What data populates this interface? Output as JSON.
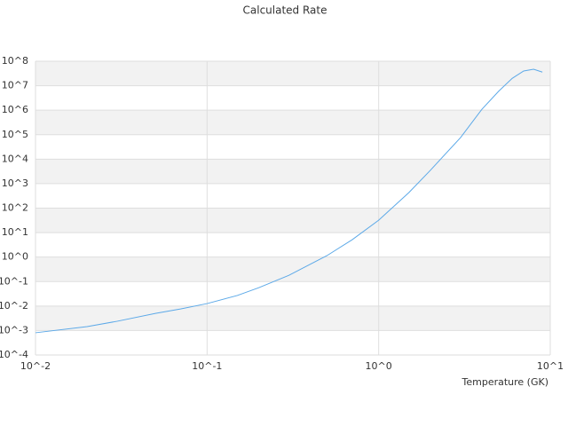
{
  "chart_data": {
    "type": "line",
    "title": "Calculated Rate",
    "x_label": "Temperature (GK)",
    "x": [
      0.01,
      0.02,
      0.03,
      0.05,
      0.07,
      0.1,
      0.15,
      0.2,
      0.3,
      0.5,
      0.7,
      1,
      1.5,
      2,
      3,
      4,
      5,
      6,
      7,
      8,
      9
    ],
    "series": [
      {
        "color": "#5ca9e8",
        "values": [
          0.00081,
          0.00145,
          0.0024,
          0.005,
          0.0076,
          0.0126,
          0.027,
          0.056,
          0.18,
          1.15,
          5.1,
          32,
          430,
          3500,
          76000,
          1100000,
          5900000,
          20000000,
          40000000,
          47000000,
          36000000
        ]
      }
    ],
    "xlim": [
      0.01,
      10
    ],
    "ylim": [
      0.0001,
      100000000
    ],
    "xticks": [
      {
        "value": 0.01,
        "label": "10^-2"
      },
      {
        "value": 0.1,
        "label": "10^-1"
      },
      {
        "value": 1,
        "label": "10^0"
      },
      {
        "value": 10,
        "label": "10^1"
      }
    ],
    "yticks": [
      {
        "value": 0.0001,
        "label": "10^-4"
      },
      {
        "value": 0.001,
        "label": "10^-3"
      },
      {
        "value": 0.01,
        "label": "10^-2"
      },
      {
        "value": 0.1,
        "label": "10^-1"
      },
      {
        "value": 1,
        "label": "10^0"
      },
      {
        "value": 10,
        "label": "10^1"
      },
      {
        "value": 100,
        "label": "10^2"
      },
      {
        "value": 1000,
        "label": "10^3"
      },
      {
        "value": 10000,
        "label": "10^4"
      },
      {
        "value": 100000,
        "label": "10^5"
      },
      {
        "value": 1000000,
        "label": "10^6"
      },
      {
        "value": 10000000,
        "label": "10^7"
      },
      {
        "value": 100000000,
        "label": "10^8"
      }
    ],
    "log_x": true,
    "log_y": true,
    "grid": true
  }
}
